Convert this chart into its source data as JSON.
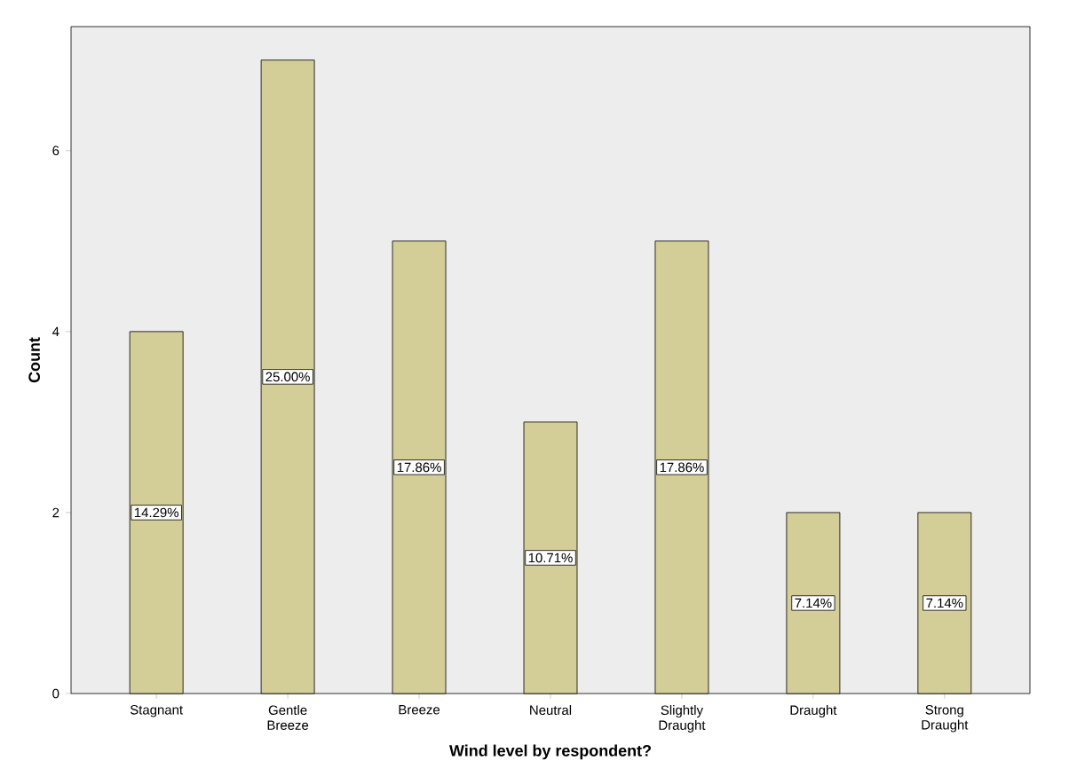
{
  "chart_data": {
    "type": "bar",
    "xlabel": "Wind level by respondent?",
    "ylabel": "Count",
    "categories": [
      "Stagnant",
      "Gentle Breeze",
      "Breeze",
      "Neutral",
      "Slightly Draught",
      "Draught",
      "Strong Draught"
    ],
    "values": [
      4,
      7,
      5,
      3,
      5,
      2,
      2
    ],
    "annotations": [
      "14.29%",
      "25.00%",
      "17.86%",
      "10.71%",
      "17.86%",
      "7.14%",
      "7.14%"
    ],
    "color": "#d3ce97",
    "ylim": [
      0,
      7.37
    ],
    "yticks": [
      0,
      2,
      4,
      6
    ]
  }
}
